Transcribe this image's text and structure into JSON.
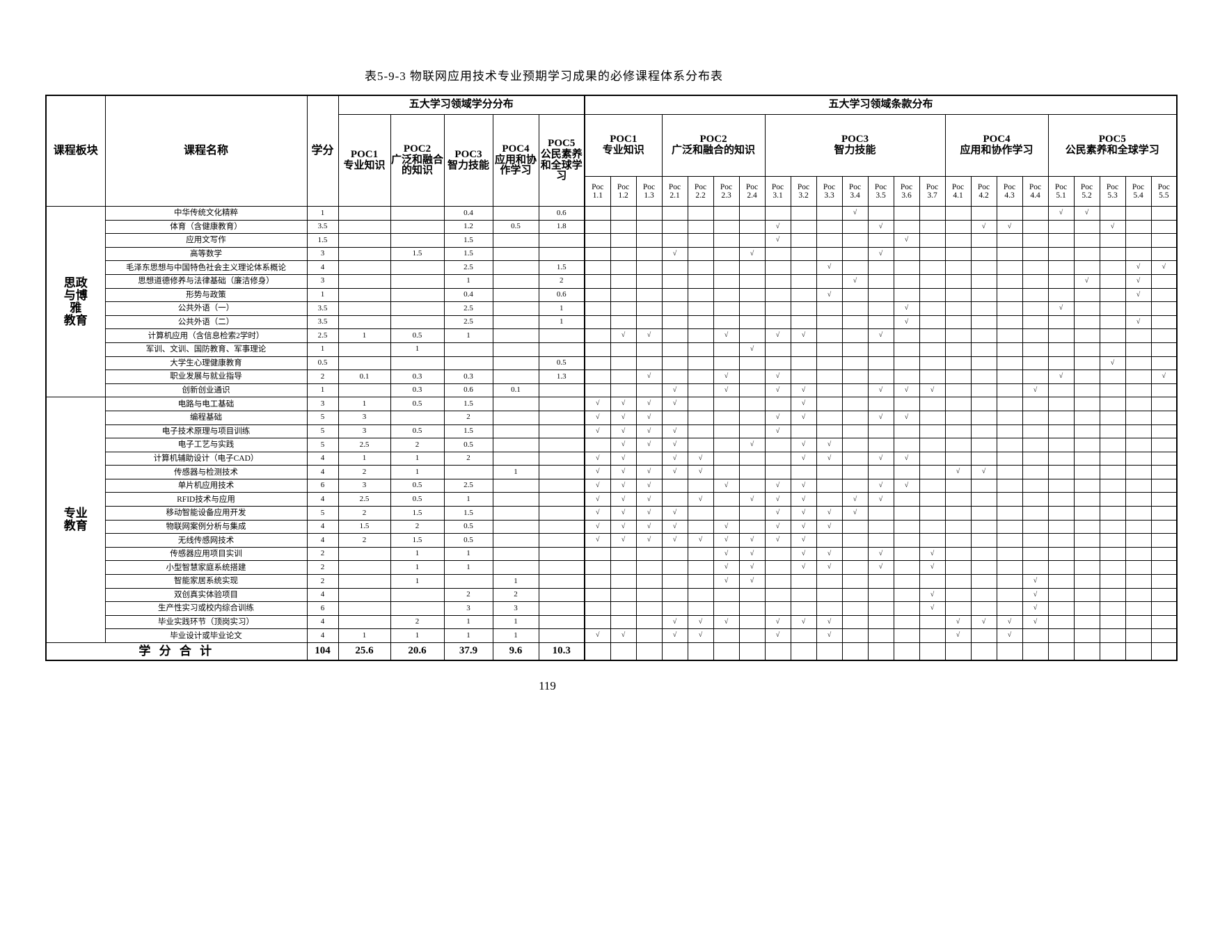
{
  "title": "表5-9-3 物联网应用技术专业预期学习成果的必修课程体系分布表",
  "page_number": "119",
  "colors": {
    "border": "#000000",
    "text": "#000000",
    "background": "#ffffff"
  },
  "table": {
    "corner_headers": {
      "block": "课程板块",
      "course": "课程名称",
      "credit": "学分"
    },
    "credit_section_title": "五大学习领域学分分布",
    "clause_section_title": "五大学习领域条款分布",
    "poc_columns": [
      {
        "code": "POC1",
        "name": "专业知识"
      },
      {
        "code": "POC2",
        "name": "广泛和融合的知识"
      },
      {
        "code": "POC3",
        "name": "智力技能"
      },
      {
        "code": "POC4",
        "name": "应用和协作学习"
      },
      {
        "code": "POC5",
        "name": "公民素养和全球学习"
      }
    ],
    "clause_groups": [
      {
        "code": "POC1",
        "name": "专业知识",
        "span": 3
      },
      {
        "code": "POC2",
        "name": "广泛和融合的知识",
        "span": 4
      },
      {
        "code": "POC3",
        "name": "智力技能",
        "span": 7
      },
      {
        "code": "POC4",
        "name": "应用和协作学习",
        "span": 4
      },
      {
        "code": "POC5",
        "name": "公民素养和全球学习",
        "span": 5
      }
    ],
    "sub_prefix": "Poc",
    "sub_columns": [
      "1.1",
      "1.2",
      "1.3",
      "2.1",
      "2.2",
      "2.3",
      "2.4",
      "3.1",
      "3.2",
      "3.3",
      "3.4",
      "3.5",
      "3.6",
      "3.7",
      "4.1",
      "4.2",
      "4.3",
      "4.4",
      "5.1",
      "5.2",
      "5.3",
      "5.4",
      "5.5"
    ],
    "check_glyph": "√",
    "sections": [
      {
        "label": "思政与博雅教育",
        "label_lines": [
          "思政",
          "与博",
          "雅",
          "教育"
        ],
        "rows": [
          {
            "course": "中华传统文化精粹",
            "credit": "1",
            "poc": [
              "",
              "",
              "0.4",
              "",
              "0.6"
            ],
            "checks": [
              "3.4",
              "5.1",
              "5.2"
            ]
          },
          {
            "course": "体育（含健康教育）",
            "credit": "3.5",
            "poc": [
              "",
              "",
              "1.2",
              "0.5",
              "1.8"
            ],
            "checks": [
              "3.1",
              "3.5",
              "4.2",
              "4.3",
              "5.3"
            ]
          },
          {
            "course": "应用文写作",
            "credit": "1.5",
            "poc": [
              "",
              "",
              "1.5",
              "",
              ""
            ],
            "checks": [
              "3.1",
              "3.6"
            ]
          },
          {
            "course": "高等数学",
            "credit": "3",
            "poc": [
              "",
              "1.5",
              "1.5",
              "",
              ""
            ],
            "checks": [
              "2.1",
              "2.4",
              "3.5"
            ]
          },
          {
            "course": "毛泽东思想与中国特色社会主义理论体系概论",
            "credit": "4",
            "poc": [
              "",
              "",
              "2.5",
              "",
              "1.5"
            ],
            "checks": [
              "3.3",
              "5.4",
              "5.5"
            ]
          },
          {
            "course": "思想道德修养与法律基础（廉洁修身）",
            "credit": "3",
            "poc": [
              "",
              "",
              "1",
              "",
              "2"
            ],
            "checks": [
              "3.4",
              "5.2",
              "5.4"
            ]
          },
          {
            "course": "形势与政策",
            "credit": "1",
            "poc": [
              "",
              "",
              "0.4",
              "",
              "0.6"
            ],
            "checks": [
              "3.3",
              "5.4"
            ]
          },
          {
            "course": "公共外语（一）",
            "credit": "3.5",
            "poc": [
              "",
              "",
              "2.5",
              "",
              "1"
            ],
            "checks": [
              "3.6",
              "5.1"
            ]
          },
          {
            "course": "公共外语（二）",
            "credit": "3.5",
            "poc": [
              "",
              "",
              "2.5",
              "",
              "1"
            ],
            "checks": [
              "3.6",
              "5.4"
            ]
          },
          {
            "course": "计算机应用（含信息检索2学时）",
            "credit": "2.5",
            "poc": [
              "1",
              "0.5",
              "1",
              "",
              ""
            ],
            "checks": [
              "1.2",
              "1.3",
              "2.3",
              "3.1",
              "3.2",
              "3.5"
            ]
          },
          {
            "course": "军训、文训、国防教育、军事理论",
            "credit": "1",
            "poc": [
              "",
              "1",
              "",
              "",
              ""
            ],
            "checks": [
              "2.4"
            ]
          },
          {
            "course": "大学生心理健康教育",
            "credit": "0.5",
            "poc": [
              "",
              "",
              "",
              "",
              "0.5"
            ],
            "checks": [
              "5.3"
            ]
          },
          {
            "course": "职业发展与就业指导",
            "credit": "2",
            "poc": [
              "0.1",
              "0.3",
              "0.3",
              "",
              "1.3"
            ],
            "checks": [
              "1.3",
              "2.3",
              "3.1",
              "5.1",
              "5.5"
            ]
          },
          {
            "course": "创新创业通识",
            "credit": "1",
            "poc": [
              "",
              "0.3",
              "0.6",
              "0.1",
              ""
            ],
            "checks": [
              "2.1",
              "2.3",
              "3.1",
              "3.2",
              "3.5",
              "3.6",
              "3.7",
              "4.4"
            ]
          }
        ]
      },
      {
        "label": "专业教育",
        "label_lines": [
          "专业",
          "教育"
        ],
        "rows": [
          {
            "course": "电路与电工基础",
            "credit": "3",
            "poc": [
              "1",
              "0.5",
              "1.5",
              "",
              ""
            ],
            "checks": [
              "1.1",
              "1.2",
              "1.3",
              "2.1",
              "3.2"
            ]
          },
          {
            "course": "编程基础",
            "credit": "5",
            "poc": [
              "3",
              "",
              "2",
              "",
              ""
            ],
            "checks": [
              "1.1",
              "1.2",
              "1.3",
              "3.1",
              "3.2",
              "3.5",
              "3.6"
            ]
          },
          {
            "course": "电子技术原理与项目训练",
            "credit": "5",
            "poc": [
              "3",
              "0.5",
              "1.5",
              "",
              ""
            ],
            "checks": [
              "1.1",
              "1.2",
              "1.3",
              "2.1",
              "3.1"
            ]
          },
          {
            "course": "电子工艺与实践",
            "credit": "5",
            "poc": [
              "2.5",
              "2",
              "0.5",
              "",
              ""
            ],
            "checks": [
              "1.2",
              "1.3",
              "2.1",
              "2.4",
              "3.2",
              "3.3"
            ]
          },
          {
            "course": "计算机辅助设计（电子CAD）",
            "credit": "4",
            "poc": [
              "1",
              "1",
              "2",
              "",
              ""
            ],
            "checks": [
              "1.1",
              "1.2",
              "2.1",
              "2.2",
              "3.2",
              "3.3",
              "3.5",
              "3.6"
            ]
          },
          {
            "course": "传感器与检测技术",
            "credit": "4",
            "poc": [
              "2",
              "1",
              "",
              "1",
              ""
            ],
            "checks": [
              "1.1",
              "1.2",
              "1.3",
              "2.1",
              "2.2",
              "4.1",
              "4.2"
            ]
          },
          {
            "course": "单片机应用技术",
            "credit": "6",
            "poc": [
              "3",
              "0.5",
              "2.5",
              "",
              ""
            ],
            "checks": [
              "1.1",
              "1.2",
              "1.3",
              "2.3",
              "3.1",
              "3.2",
              "3.5",
              "3.6"
            ]
          },
          {
            "course": "RFID技术与应用",
            "credit": "4",
            "poc": [
              "2.5",
              "0.5",
              "1",
              "",
              ""
            ],
            "checks": [
              "1.1",
              "1.2",
              "1.3",
              "2.2",
              "2.4",
              "3.1",
              "3.2",
              "3.4",
              "3.5"
            ]
          },
          {
            "course": "移动智能设备应用开发",
            "credit": "5",
            "poc": [
              "2",
              "1.5",
              "1.5",
              "",
              ""
            ],
            "checks": [
              "1.1",
              "1.2",
              "1.3",
              "2.1",
              "3.1",
              "3.2",
              "3.3",
              "3.4"
            ]
          },
          {
            "course": "物联网案例分析与集成",
            "credit": "4",
            "poc": [
              "1.5",
              "2",
              "0.5",
              "",
              ""
            ],
            "checks": [
              "1.1",
              "1.2",
              "1.3",
              "2.1",
              "2.3",
              "3.1",
              "3.2",
              "3.3"
            ]
          },
          {
            "course": "无线传感网技术",
            "credit": "4",
            "poc": [
              "2",
              "1.5",
              "0.5",
              "",
              ""
            ],
            "checks": [
              "1.1",
              "1.2",
              "1.3",
              "2.1",
              "2.2",
              "2.3",
              "2.4",
              "3.1",
              "3.2"
            ]
          },
          {
            "course": "传感器应用项目实训",
            "credit": "2",
            "poc": [
              "",
              "1",
              "1",
              "",
              ""
            ],
            "checks": [
              "2.3",
              "2.4",
              "3.2",
              "3.3",
              "3.5",
              "3.7"
            ]
          },
          {
            "course": "小型智慧家庭系统搭建",
            "credit": "2",
            "poc": [
              "",
              "1",
              "1",
              "",
              ""
            ],
            "checks": [
              "2.3",
              "2.4",
              "3.2",
              "3.3",
              "3.5",
              "3.7"
            ]
          },
          {
            "course": "智能家居系统实现",
            "credit": "2",
            "poc": [
              "",
              "1",
              "",
              "1",
              ""
            ],
            "checks": [
              "2.3",
              "2.4",
              "4.4"
            ]
          },
          {
            "course": "双创真实体验项目",
            "credit": "4",
            "poc": [
              "",
              "",
              "2",
              "2",
              ""
            ],
            "checks": [
              "3.7",
              "4.4"
            ]
          },
          {
            "course": "生产性实习或校内综合训练",
            "credit": "6",
            "poc": [
              "",
              "",
              "3",
              "3",
              ""
            ],
            "checks": [
              "3.7",
              "4.4"
            ]
          },
          {
            "course": "毕业实践环节（顶岗实习）",
            "credit": "4",
            "poc": [
              "",
              "2",
              "1",
              "1",
              ""
            ],
            "checks": [
              "2.1",
              "2.2",
              "2.3",
              "3.1",
              "3.2",
              "3.3",
              "4.1",
              "4.2",
              "4.3",
              "4.4"
            ]
          },
          {
            "course": "毕业设计或毕业论文",
            "credit": "4",
            "poc": [
              "1",
              "1",
              "1",
              "1",
              ""
            ],
            "checks": [
              "1.1",
              "1.2",
              "2.1",
              "2.2",
              "3.1",
              "3.3",
              "4.1",
              "4.3"
            ]
          }
        ]
      }
    ],
    "totals": {
      "label": "学 分 合 计",
      "credit": "104",
      "poc": [
        "25.6",
        "20.6",
        "37.9",
        "9.6",
        "10.3"
      ]
    }
  }
}
